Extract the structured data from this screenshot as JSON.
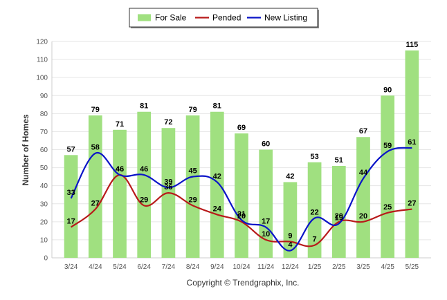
{
  "chart_data": {
    "type": "bar",
    "categories": [
      "3/24",
      "4/24",
      "5/24",
      "6/24",
      "7/24",
      "8/24",
      "9/24",
      "10/24",
      "11/24",
      "12/24",
      "1/25",
      "2/25",
      "3/25",
      "4/25",
      "5/25"
    ],
    "series": [
      {
        "name": "For Sale",
        "type": "bar",
        "color": "#a0e080",
        "values": [
          57,
          79,
          71,
          81,
          72,
          79,
          81,
          69,
          60,
          42,
          53,
          51,
          67,
          90,
          115
        ]
      },
      {
        "name": "Pended",
        "type": "line",
        "color": "#b81a1a",
        "values": [
          17,
          27,
          46,
          29,
          36,
          29,
          24,
          20,
          10,
          9,
          7,
          20,
          20,
          25,
          27
        ]
      },
      {
        "name": "New Listing",
        "type": "line",
        "color": "#0a14c8",
        "values": [
          33,
          58,
          46,
          46,
          39,
          45,
          42,
          21,
          17,
          4,
          22,
          19,
          44,
          59,
          61
        ]
      }
    ],
    "ylabel": "Number of Homes",
    "xlabel": "",
    "ylim": [
      0,
      120
    ],
    "yticks": [
      0,
      10,
      20,
      30,
      40,
      50,
      60,
      70,
      80,
      90,
      100,
      110,
      120
    ],
    "grid": true,
    "legend_position": "top-center",
    "footer": "Copyright © Trendgraphix, Inc."
  }
}
